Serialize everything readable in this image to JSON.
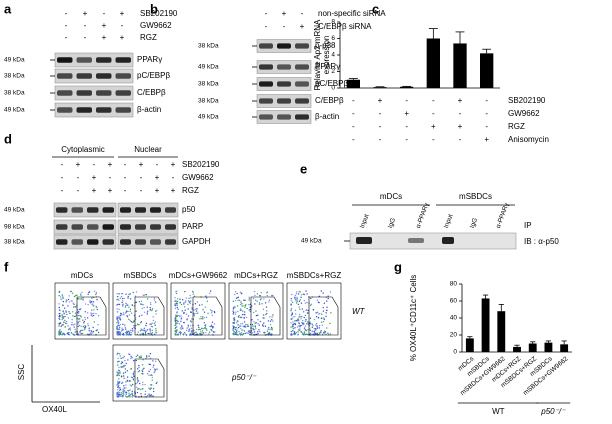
{
  "figure": {
    "a": {
      "label": "a",
      "treatments": [
        {
          "name": "SB202190",
          "signs": [
            "-",
            "+",
            "-",
            "+"
          ]
        },
        {
          "name": "GW9662",
          "signs": [
            "-",
            "-",
            "+",
            "-"
          ]
        },
        {
          "name": "RGZ",
          "signs": [
            "-",
            "-",
            "+",
            "+"
          ]
        }
      ],
      "blots": [
        {
          "marker": "49 kDa",
          "name": "PPARγ"
        },
        {
          "marker": "38 kDa",
          "name": "pC/EBPβ"
        },
        {
          "marker": "38 kDa",
          "name": "C/EBPβ"
        },
        {
          "marker": "49 kDa",
          "name": "β-actin"
        }
      ]
    },
    "b": {
      "label": "b",
      "treatments": [
        {
          "name": "non-specific siRNA",
          "signs": [
            "-",
            "+",
            "-"
          ]
        },
        {
          "name": "C/EBPβ siRNA",
          "signs": [
            "-",
            "-",
            "+"
          ]
        }
      ],
      "blots": [
        {
          "marker": "38 kDa",
          "name": "p-p38"
        },
        {
          "marker": "49 kDa",
          "name": "PPARγ"
        },
        {
          "marker": "38 kDa",
          "name": "pC/EBPβ"
        },
        {
          "marker": "38 kDa",
          "name": "C/EBPβ"
        },
        {
          "marker": "49 kDa",
          "name": "β-actin"
        }
      ]
    },
    "d": {
      "label": "d",
      "groups": [
        "Cytoplasmic",
        "Nuclear"
      ],
      "treatments": [
        {
          "name": "SB202190",
          "signs": [
            "-",
            "+",
            "-",
            "+",
            "-",
            "+",
            "-",
            "+"
          ]
        },
        {
          "name": "GW9662",
          "signs": [
            "-",
            "-",
            "+",
            "-",
            "-",
            "-",
            "+",
            "-"
          ]
        },
        {
          "name": "RGZ",
          "signs": [
            "-",
            "-",
            "+",
            "+",
            "-",
            "-",
            "+",
            "+"
          ]
        }
      ],
      "blots": [
        {
          "marker": "49 kDa",
          "name": "p50"
        },
        {
          "marker": "98 kDa",
          "name": "PARP"
        },
        {
          "marker": "38 kDa",
          "name": "GAPDH"
        }
      ]
    },
    "e": {
      "label": "e",
      "groups": [
        "mDCs",
        "mSBDCs"
      ],
      "lanes": [
        "Input",
        "IgG",
        "α-PPARγ",
        "Input",
        "IgG",
        "α-PPARγ"
      ],
      "ip": "IP",
      "ib": "IB : α-p50",
      "marker": "49 kDa"
    },
    "f": {
      "label": "f",
      "plots": [
        "mDCs",
        "mSBDCs",
        "mDCs+GW9662",
        "mDCs+RGZ",
        "mSBDCs+RGZ"
      ],
      "rows": [
        "WT",
        "p50⁻/⁻"
      ],
      "y_label": "SSC",
      "x_label": "OX40L"
    }
  },
  "chart_data": [
    {
      "label": "c",
      "type": "bar",
      "y_label": [
        "Relavite Ap2 mRNA",
        "expression"
      ],
      "values": [
        1.0,
        0.1,
        0.15,
        6.0,
        5.4,
        4.2
      ],
      "errors": [
        0.15,
        0.05,
        0.05,
        1.2,
        1.4,
        0.5
      ],
      "ylim": [
        0,
        8
      ],
      "yticks": [
        0,
        2,
        4,
        6,
        8
      ],
      "color": "#000000",
      "treatments": [
        {
          "name": "SB202190",
          "signs": [
            "-",
            "+",
            "-",
            "-",
            "+",
            "-"
          ]
        },
        {
          "name": "GW9662",
          "signs": [
            "-",
            "-",
            "+",
            "-",
            "-",
            "-"
          ]
        },
        {
          "name": "RGZ",
          "signs": [
            "-",
            "-",
            "-",
            "+",
            "+",
            "-"
          ]
        },
        {
          "name": "Anisomycin",
          "signs": [
            "-",
            "-",
            "-",
            "-",
            "-",
            "+"
          ]
        }
      ]
    },
    {
      "label": "g",
      "type": "bar",
      "y_label": [
        "% OX40L⁺CD11c⁺ Cells"
      ],
      "categories": [
        "mDCs",
        "mSBDCs",
        "mSBDCs+GW9662",
        "mDCs+RGZ",
        "mSBDCs+RGZ",
        "mSBDCs",
        "mSBDCs+GW9662"
      ],
      "values": [
        16,
        63,
        48,
        6,
        10,
        11,
        9
      ],
      "errors": [
        2,
        4,
        8,
        2,
        2,
        2,
        4
      ],
      "ylim": [
        0,
        80
      ],
      "yticks": [
        0,
        20,
        40,
        60,
        80
      ],
      "color": "#000000",
      "groups": [
        "WT",
        "p50⁻/⁻"
      ]
    }
  ]
}
